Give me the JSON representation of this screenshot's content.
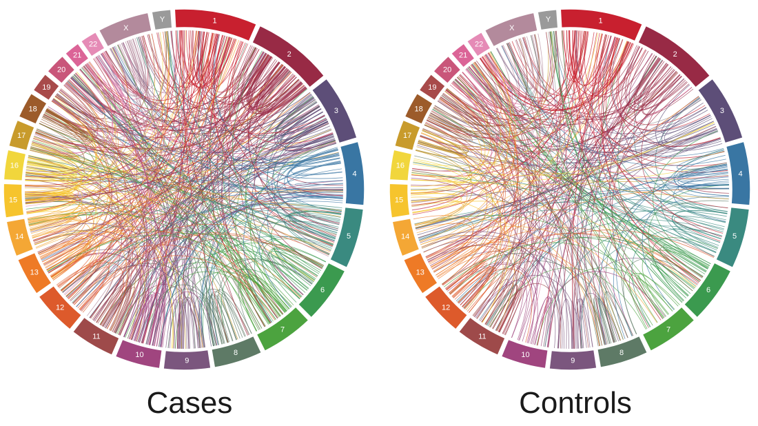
{
  "chromosomes": [
    {
      "label": "1",
      "size": 249,
      "color": "#c8202f"
    },
    {
      "label": "2",
      "size": 243,
      "color": "#982a45"
    },
    {
      "label": "3",
      "size": 198,
      "color": "#5d4e78"
    },
    {
      "label": "4",
      "size": 191,
      "color": "#3976a3"
    },
    {
      "label": "5",
      "size": 181,
      "color": "#3a8a80"
    },
    {
      "label": "6",
      "size": 171,
      "color": "#3b9a4f"
    },
    {
      "label": "7",
      "size": 159,
      "color": "#4ca33f"
    },
    {
      "label": "8",
      "size": 146,
      "color": "#5e7a66"
    },
    {
      "label": "9",
      "size": 141,
      "color": "#7b567e"
    },
    {
      "label": "10",
      "size": 136,
      "color": "#a0457f"
    },
    {
      "label": "11",
      "size": 135,
      "color": "#9e4a4a"
    },
    {
      "label": "12",
      "size": 134,
      "color": "#dd5a2b"
    },
    {
      "label": "13",
      "size": 115,
      "color": "#ee7a26"
    },
    {
      "label": "14",
      "size": 107,
      "color": "#f4a735"
    },
    {
      "label": "15",
      "size": 102,
      "color": "#f6c42d"
    },
    {
      "label": "16",
      "size": 90,
      "color": "#f1d63c"
    },
    {
      "label": "17",
      "size": 81,
      "color": "#c89b2c"
    },
    {
      "label": "18",
      "size": 78,
      "color": "#9c5b2a"
    },
    {
      "label": "19",
      "size": 59,
      "color": "#a84a4a"
    },
    {
      "label": "20",
      "size": 63,
      "color": "#c9567a"
    },
    {
      "label": "21",
      "size": 48,
      "color": "#db6497"
    },
    {
      "label": "22",
      "size": 51,
      "color": "#e58bb6"
    },
    {
      "label": "X",
      "size": 155,
      "color": "#b38a9c"
    },
    {
      "label": "Y",
      "size": 57,
      "color": "#9a9a9a"
    }
  ],
  "panels": [
    {
      "caption": "Cases"
    },
    {
      "caption": "Controls"
    }
  ]
}
